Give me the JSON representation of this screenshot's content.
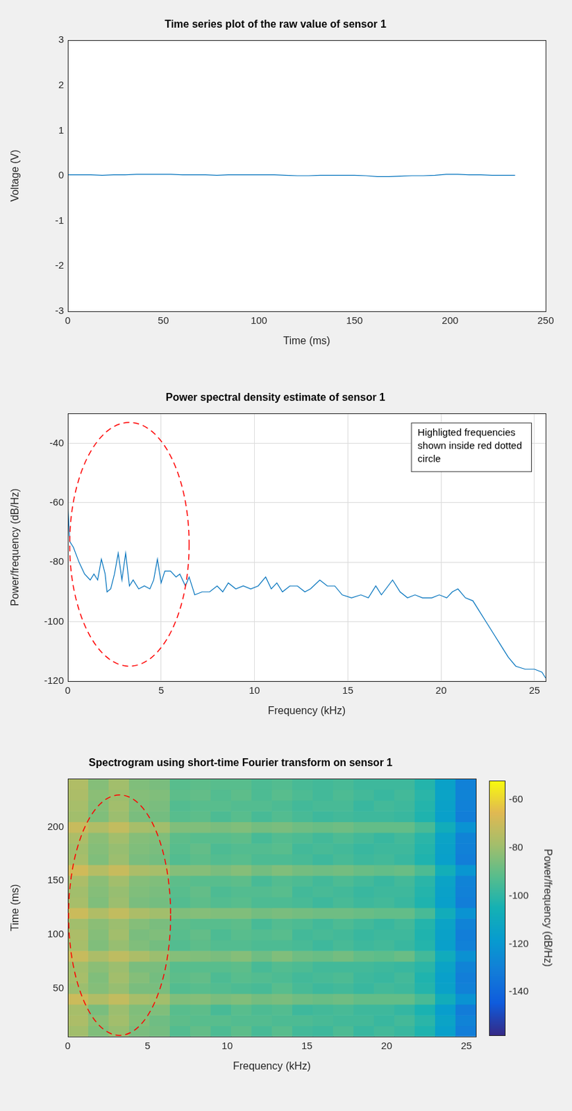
{
  "chart_data": [
    {
      "type": "line",
      "title": "Time series plot of the raw value of sensor 1",
      "x_label": "Time (ms)",
      "y_label": "Voltage (V)",
      "color": "#0072bd",
      "x": [
        0,
        6,
        12,
        18,
        24,
        30,
        36,
        42,
        48,
        54,
        60,
        66,
        72,
        78,
        84,
        90,
        96,
        102,
        108,
        114,
        120,
        126,
        132,
        138,
        144,
        150,
        156,
        162,
        168,
        174,
        180,
        186,
        192,
        198,
        204,
        210,
        216,
        222,
        228,
        234
      ],
      "values": [
        0.02,
        0.02,
        0.02,
        0.01,
        0.02,
        0.02,
        0.03,
        0.03,
        0.03,
        0.03,
        0.02,
        0.02,
        0.02,
        0.01,
        0.02,
        0.02,
        0.02,
        0.02,
        0.02,
        0.01,
        0.0,
        0.0,
        0.01,
        0.01,
        0.01,
        0.01,
        0.0,
        -0.02,
        -0.02,
        -0.01,
        0.0,
        0.0,
        0.01,
        0.03,
        0.03,
        0.02,
        0.02,
        0.01,
        0.01,
        0.01
      ],
      "xlim": [
        0,
        250
      ],
      "ylim": [
        -3,
        3
      ],
      "xticks": [
        0,
        50,
        100,
        150,
        200,
        250
      ],
      "yticks": [
        -3,
        -2,
        -1,
        0,
        1,
        2,
        3
      ],
      "grid": false
    },
    {
      "type": "line",
      "title": "Power spectral density estimate of sensor 1",
      "x_label": "Frequency (kHz)",
      "y_label": "Power/frequency (dB/Hz)",
      "color": "#0072bd",
      "x": [
        0,
        0.1,
        0.3,
        0.6,
        0.9,
        1.2,
        1.4,
        1.6,
        1.8,
        2.0,
        2.1,
        2.3,
        2.5,
        2.7,
        2.9,
        3.1,
        3.3,
        3.5,
        3.8,
        4.1,
        4.4,
        4.6,
        4.8,
        5.0,
        5.2,
        5.5,
        5.8,
        6.0,
        6.3,
        6.5,
        6.8,
        7.2,
        7.6,
        8.0,
        8.3,
        8.6,
        9.0,
        9.4,
        9.8,
        10.2,
        10.6,
        10.9,
        11.2,
        11.5,
        11.9,
        12.3,
        12.7,
        13.0,
        13.5,
        13.9,
        14.3,
        14.7,
        15.2,
        15.7,
        16.1,
        16.5,
        16.8,
        17.4,
        17.8,
        18.2,
        18.6,
        19.0,
        19.5,
        19.9,
        20.3,
        20.6,
        20.9,
        21.3,
        21.7,
        22.0,
        22.4,
        22.8,
        23.2,
        23.6,
        24.0,
        24.5,
        25.0,
        25.4,
        25.6
      ],
      "values": [
        -60,
        -73,
        -75,
        -80,
        -84,
        -86,
        -84,
        -86,
        -79,
        -84,
        -90,
        -89,
        -84,
        -77,
        -86,
        -77,
        -88,
        -86,
        -89,
        -88,
        -89,
        -86,
        -79,
        -87,
        -83,
        -83,
        -85,
        -84,
        -88,
        -85,
        -91,
        -90,
        -90,
        -88,
        -90,
        -87,
        -89,
        -88,
        -89,
        -88,
        -85,
        -89,
        -87,
        -90,
        -88,
        -88,
        -90,
        -89,
        -86,
        -88,
        -88,
        -91,
        -92,
        -91,
        -92,
        -88,
        -91,
        -86,
        -90,
        -92,
        -91,
        -92,
        -92,
        -91,
        -92,
        -90,
        -89,
        -92,
        -93,
        -96,
        -100,
        -104,
        -108,
        -112,
        -115,
        -116,
        -116,
        -117,
        -119
      ],
      "xlim": [
        0,
        25.6
      ],
      "ylim": [
        -120,
        -30
      ],
      "xticks": [
        0,
        5,
        10,
        15,
        20,
        25
      ],
      "yticks": [
        -120,
        -100,
        -80,
        -60,
        -40
      ],
      "grid": true,
      "annotation": {
        "text_lines": [
          "Highligted frequencies",
          "shown inside red dotted",
          "circle"
        ],
        "ellipse": {
          "x_center": 3.3,
          "y_center": -74,
          "x_radius": 3.2,
          "y_radius": 41,
          "color": "#ff0000",
          "line_style": "dashed"
        }
      }
    },
    {
      "type": "heatmap",
      "title": "Spectrogram using short-time Fourier transform on sensor 1",
      "x_label": "Frequency (kHz)",
      "y_label": "Time (ms)",
      "x_edges": [
        0,
        1.28,
        2.56,
        3.84,
        5.12,
        6.4,
        7.68,
        8.96,
        10.24,
        11.52,
        12.8,
        14.08,
        15.36,
        16.64,
        17.92,
        19.2,
        20.48,
        21.76,
        23.04,
        24.32,
        25.6
      ],
      "y_edges": [
        5,
        15,
        25,
        35,
        45,
        55,
        65,
        75,
        85,
        95,
        105,
        115,
        125,
        135,
        145,
        155,
        165,
        175,
        185,
        195,
        205,
        215,
        225,
        235,
        245
      ],
      "cells": [
        [
          -79,
          -85,
          -81,
          -86,
          -87,
          -93,
          -90,
          -94,
          -91,
          -95,
          -92,
          -96,
          -97,
          -94,
          -98,
          -96,
          -98,
          -103,
          -116,
          -131
        ],
        [
          -77,
          -83,
          -79,
          -84,
          -88,
          -91,
          -92,
          -92,
          -93,
          -93,
          -94,
          -94,
          -95,
          -96,
          -96,
          -98,
          -96,
          -101,
          -114,
          -129
        ],
        [
          -78,
          -86,
          -80,
          -85,
          -85,
          -92,
          -91,
          -95,
          -92,
          -94,
          -93,
          -97,
          -96,
          -95,
          -97,
          -97,
          -99,
          -104,
          -117,
          -132
        ],
        [
          -70,
          -76,
          -72,
          -78,
          -79,
          -85,
          -84,
          -86,
          -85,
          -87,
          -86,
          -88,
          -89,
          -88,
          -90,
          -90,
          -90,
          -95,
          -108,
          -122
        ],
        [
          -80,
          -84,
          -81,
          -86,
          -86,
          -93,
          -92,
          -93,
          -94,
          -95,
          -92,
          -95,
          -97,
          -96,
          -98,
          -96,
          -97,
          -102,
          -115,
          -130
        ],
        [
          -78,
          -85,
          -79,
          -84,
          -87,
          -91,
          -90,
          -94,
          -92,
          -93,
          -94,
          -96,
          -95,
          -94,
          -97,
          -98,
          -96,
          -103,
          -116,
          -131
        ],
        [
          -79,
          -83,
          -80,
          -86,
          -86,
          -92,
          -92,
          -92,
          -91,
          -95,
          -93,
          -94,
          -96,
          -96,
          -96,
          -97,
          -98,
          -101,
          -114,
          -129
        ],
        [
          -71,
          -77,
          -73,
          -77,
          -80,
          -84,
          -85,
          -86,
          -84,
          -88,
          -85,
          -88,
          -89,
          -87,
          -90,
          -91,
          -89,
          -96,
          -109,
          -123
        ],
        [
          -78,
          -85,
          -81,
          -85,
          -87,
          -93,
          -91,
          -93,
          -93,
          -94,
          -94,
          -95,
          -97,
          -95,
          -97,
          -96,
          -98,
          -102,
          -116,
          -130
        ],
        [
          -77,
          -84,
          -79,
          -86,
          -85,
          -92,
          -90,
          -94,
          -92,
          -93,
          -92,
          -96,
          -95,
          -96,
          -98,
          -97,
          -97,
          -103,
          -115,
          -131
        ],
        [
          -79,
          -83,
          -80,
          -84,
          -86,
          -91,
          -92,
          -92,
          -91,
          -95,
          -93,
          -94,
          -96,
          -94,
          -96,
          -98,
          -96,
          -102,
          -114,
          -129
        ],
        [
          -70,
          -76,
          -72,
          -77,
          -79,
          -85,
          -84,
          -85,
          -85,
          -87,
          -86,
          -87,
          -88,
          -88,
          -89,
          -90,
          -90,
          -95,
          -108,
          -122
        ],
        [
          -78,
          -85,
          -80,
          -86,
          -87,
          -93,
          -91,
          -93,
          -92,
          -94,
          -94,
          -95,
          -97,
          -95,
          -97,
          -96,
          -98,
          -103,
          -116,
          -131
        ],
        [
          -79,
          -84,
          -81,
          -85,
          -86,
          -92,
          -90,
          -94,
          -93,
          -93,
          -92,
          -96,
          -95,
          -96,
          -98,
          -97,
          -97,
          -102,
          -115,
          -130
        ],
        [
          -77,
          -83,
          -79,
          -84,
          -85,
          -91,
          -92,
          -92,
          -91,
          -95,
          -93,
          -94,
          -96,
          -94,
          -96,
          -98,
          -96,
          -101,
          -114,
          -129
        ],
        [
          -69,
          -75,
          -71,
          -77,
          -78,
          -84,
          -84,
          -86,
          -84,
          -87,
          -85,
          -87,
          -88,
          -87,
          -89,
          -90,
          -89,
          -94,
          -107,
          -121
        ],
        [
          -78,
          -85,
          -80,
          -86,
          -87,
          -93,
          -91,
          -93,
          -92,
          -94,
          -94,
          -95,
          -97,
          -95,
          -97,
          -96,
          -98,
          -103,
          -116,
          -131
        ],
        [
          -79,
          -84,
          -81,
          -85,
          -86,
          -92,
          -90,
          -94,
          -93,
          -93,
          -92,
          -96,
          -95,
          -96,
          -98,
          -97,
          -97,
          -102,
          -115,
          -130
        ],
        [
          -77,
          -83,
          -79,
          -84,
          -85,
          -91,
          -92,
          -92,
          -91,
          -95,
          -93,
          -94,
          -96,
          -94,
          -96,
          -98,
          -96,
          -101,
          -114,
          -129
        ],
        [
          -71,
          -76,
          -72,
          -78,
          -79,
          -85,
          -85,
          -86,
          -85,
          -87,
          -86,
          -88,
          -89,
          -88,
          -90,
          -90,
          -90,
          -95,
          -108,
          -122
        ],
        [
          -79,
          -85,
          -80,
          -86,
          -87,
          -92,
          -91,
          -94,
          -92,
          -95,
          -93,
          -95,
          -97,
          -96,
          -97,
          -97,
          -98,
          -103,
          -116,
          -131
        ],
        [
          -78,
          -84,
          -79,
          -85,
          -86,
          -93,
          -92,
          -92,
          -93,
          -93,
          -94,
          -96,
          -95,
          -95,
          -98,
          -96,
          -97,
          -102,
          -115,
          -130
        ],
        [
          -77,
          -83,
          -80,
          -84,
          -85,
          -91,
          -90,
          -93,
          -91,
          -94,
          -92,
          -94,
          -96,
          -94,
          -96,
          -98,
          -96,
          -101,
          -114,
          -129
        ],
        [
          -76,
          -84,
          -79,
          -85,
          -86,
          -92,
          -91,
          -92,
          -92,
          -94,
          -93,
          -95,
          -96,
          -95,
          -97,
          -97,
          -97,
          -102,
          -115,
          -130
        ]
      ],
      "xlim": [
        0,
        25.6
      ],
      "ylim": [
        5,
        245
      ],
      "xticks": [
        0,
        5,
        10,
        15,
        20,
        25
      ],
      "yticks": [
        50,
        100,
        150,
        200
      ],
      "grid": false,
      "colorbar": {
        "label": "Power/frequency (dB/Hz)",
        "range": [
          -158,
          -52
        ],
        "ticks": [
          -140,
          -120,
          -100,
          -80,
          -60
        ]
      },
      "annotation": {
        "ellipse": {
          "x_center": 3.25,
          "y_center": 118,
          "x_radius": 3.2,
          "y_radius": 112,
          "color": "#ff0000",
          "line_style": "dashed"
        }
      }
    }
  ]
}
